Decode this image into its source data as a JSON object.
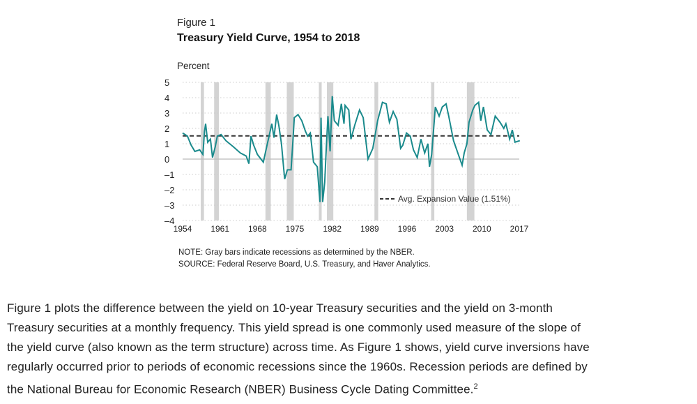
{
  "figure": {
    "label": "Figure 1",
    "title": "Treasury Yield Curve, 1954 to 2018",
    "note": "NOTE: Gray bars indicate recessions as determined by the NBER.",
    "source": "SOURCE: Federal Reserve Board, U.S. Treasury, and Haver Analytics."
  },
  "chart_data": {
    "type": "line",
    "title": "Treasury Yield Curve, 1954 to 2018",
    "ylabel": "Percent",
    "xlabel": "",
    "xlim": [
      1954,
      2017
    ],
    "ylim": [
      -4,
      5
    ],
    "x_ticks": [
      "1954",
      "1961",
      "1968",
      "1975",
      "1982",
      "1989",
      "1996",
      "2003",
      "2010",
      "2017"
    ],
    "y_ticks": [
      "5",
      "4",
      "3",
      "2",
      "1",
      "0",
      "–1",
      "–2",
      "–3",
      "–4"
    ],
    "grid": "horizontal dotted",
    "line_color": "#1a8a8c",
    "recession_color": "#d3d3d3",
    "legend": {
      "label": "Avg. Expansion Value (1.51%)",
      "placement": "bottom-right"
    },
    "reference_line": {
      "value": 1.51,
      "style": "dashed"
    },
    "recessions": [
      [
        1957.4,
        1958.0
      ],
      [
        1959.9,
        1960.8
      ],
      [
        1969.5,
        1970.5
      ],
      [
        1973.5,
        1974.8
      ],
      [
        1979.5,
        1980.0
      ],
      [
        1981.0,
        1982.2
      ],
      [
        1989.9,
        1990.6
      ],
      [
        2000.5,
        2001.1
      ],
      [
        2007.2,
        2008.6
      ]
    ],
    "series": [
      {
        "x": [
          1954.0,
          1954.9,
          1955.6,
          1956.3,
          1957.2,
          1957.8,
          1958.1,
          1958.3,
          1958.7,
          1959.2,
          1959.6,
          1960.1,
          1960.5,
          1961.2,
          1962.1,
          1963.5,
          1964.8,
          1965.9,
          1966.4,
          1966.8,
          1967.3,
          1968.0,
          1969.1,
          1969.8,
          1970.7,
          1971.1,
          1971.6,
          1972.0,
          1972.5,
          1973.1,
          1973.6,
          1974.3,
          1974.7,
          1974.9,
          1975.6,
          1976.3,
          1977.0,
          1977.4,
          1977.9,
          1978.5,
          1979.2,
          1979.7,
          1979.9,
          1980.2,
          1980.6,
          1980.9,
          1981.2,
          1981.6,
          1982.0,
          1982.4,
          1983.1,
          1983.7,
          1984.2,
          1984.4,
          1985.1,
          1985.5,
          1986.2,
          1987.1,
          1987.8,
          1988.7,
          1989.6,
          1990.5,
          1991.4,
          1992.1,
          1992.7,
          1993.4,
          1994.1,
          1994.8,
          1995.2,
          1995.9,
          1996.6,
          1997.2,
          1997.9,
          1998.6,
          1999.3,
          1999.9,
          2000.2,
          2000.6,
          2001.3,
          2002.0,
          2002.6,
          2003.3,
          2003.8,
          2004.7,
          2005.6,
          2006.3,
          2006.7,
          2007.2,
          2007.6,
          2008.3,
          2008.7,
          2009.4,
          2009.8,
          2010.3,
          2011.0,
          2011.7,
          2012.5,
          2013.4,
          2014.1,
          2014.5,
          2015.2,
          2015.7,
          2016.2,
          2017.1
        ],
        "y": [
          1.7,
          1.5,
          0.9,
          0.5,
          0.6,
          0.3,
          1.8,
          2.3,
          1.1,
          1.3,
          0.1,
          0.8,
          1.5,
          1.6,
          1.2,
          0.8,
          0.4,
          0.2,
          -0.3,
          1.5,
          0.9,
          0.3,
          -0.2,
          0.9,
          2.3,
          1.4,
          2.9,
          2.2,
          1.0,
          -1.3,
          -0.7,
          -0.7,
          1.5,
          2.7,
          2.9,
          2.5,
          1.8,
          1.5,
          1.7,
          -0.2,
          -0.5,
          -2.8,
          2.7,
          -2.8,
          -1.5,
          0.8,
          2.8,
          0.5,
          4.1,
          2.5,
          2.2,
          3.6,
          2.3,
          3.5,
          3.2,
          1.3,
          2.2,
          3.2,
          2.7,
          0.0,
          0.7,
          2.5,
          3.7,
          3.6,
          2.4,
          3.1,
          2.6,
          0.7,
          0.9,
          1.7,
          1.5,
          0.6,
          0.1,
          1.3,
          0.4,
          1.0,
          -0.5,
          0.3,
          3.4,
          2.8,
          3.4,
          3.6,
          2.8,
          1.2,
          0.3,
          -0.4,
          0.4,
          1.0,
          2.4,
          3.2,
          3.5,
          3.7,
          2.5,
          3.4,
          1.9,
          1.6,
          2.8,
          2.4,
          2.0,
          2.3,
          1.3,
          1.9,
          1.1,
          1.2
        ]
      }
    ]
  },
  "body": {
    "lines": [
      "Figure 1 plots the difference between the yield on 10-year Treasury securities and the yield on 3-month",
      "Treasury securities at a monthly frequency. This yield spread is one commonly used measure of the slope of",
      "the yield curve (also known as the term structure) across time. As Figure 1 shows, yield curve inversions have",
      "regularly occurred prior to periods of economic recessions since the 1960s. Recession periods are defined by",
      "the National Bureau for Economic Research (NBER) Business Cycle Dating Committee."
    ],
    "footnote_ref": "2"
  }
}
